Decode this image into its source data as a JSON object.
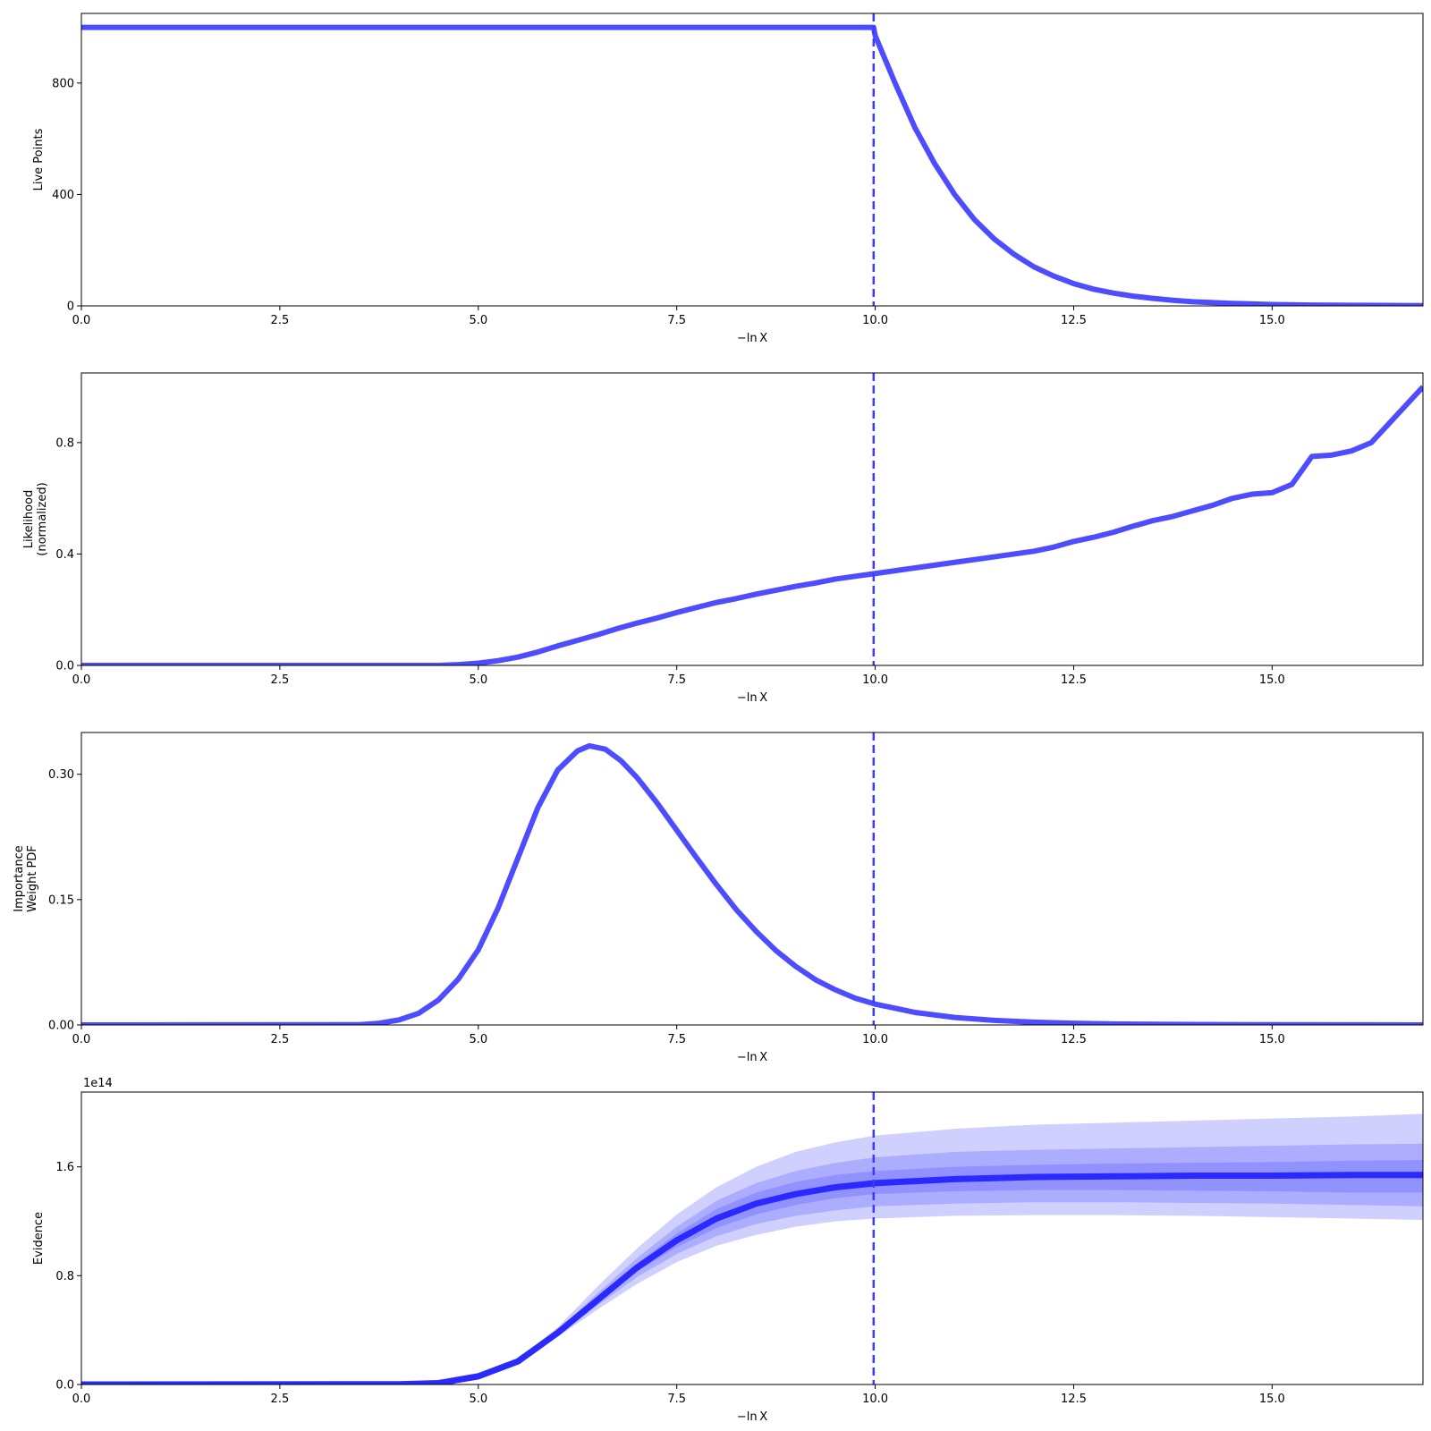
{
  "colors": {
    "line": "#4d4dff",
    "evidence_line": "#2a2aff",
    "vline": "#3b3bff",
    "band": "#4444ff"
  },
  "chart_data": [
    {
      "type": "line",
      "ylabel": [
        "Live Points"
      ],
      "xlabel": "−ln X",
      "xlim": [
        0,
        16.9
      ],
      "ylim": [
        0,
        1050
      ],
      "xticks": [
        "0.0",
        "2.5",
        "5.0",
        "7.5",
        "10.0",
        "12.5",
        "15.0"
      ],
      "xtick_values": [
        0,
        2.5,
        5.0,
        7.5,
        10.0,
        12.5,
        15.0
      ],
      "yticks": [
        "0",
        "400",
        "800"
      ],
      "ytick_values": [
        0,
        400,
        800
      ],
      "vline_x": 9.98,
      "grid": false,
      "series": [
        {
          "x": [
            0,
            9.98,
            10.0,
            10.25,
            10.5,
            10.75,
            11.0,
            11.25,
            11.5,
            11.75,
            12.0,
            12.25,
            12.5,
            12.75,
            13.0,
            13.25,
            13.5,
            13.75,
            14.0,
            14.5,
            15.0,
            15.5,
            16.0,
            16.9
          ],
          "y": [
            1000,
            1000,
            970,
            800,
            640,
            510,
            400,
            310,
            240,
            185,
            140,
            107,
            80,
            60,
            46,
            35,
            27,
            20,
            15,
            9,
            5,
            3,
            2,
            1
          ]
        }
      ]
    },
    {
      "type": "line",
      "ylabel": [
        "Likelihood",
        "(normalized)"
      ],
      "xlabel": "−ln X",
      "xlim": [
        0,
        16.9
      ],
      "ylim": [
        0,
        1.05
      ],
      "xticks": [
        "0.0",
        "2.5",
        "5.0",
        "7.5",
        "10.0",
        "12.5",
        "15.0"
      ],
      "xtick_values": [
        0,
        2.5,
        5.0,
        7.5,
        10.0,
        12.5,
        15.0
      ],
      "yticks": [
        "0.0",
        "0.4",
        "0.8"
      ],
      "ytick_values": [
        0,
        0.4,
        0.8
      ],
      "vline_x": 9.98,
      "grid": false,
      "series": [
        {
          "x": [
            0,
            4.5,
            4.75,
            5.0,
            5.25,
            5.5,
            5.75,
            6.0,
            6.25,
            6.5,
            6.75,
            7.0,
            7.25,
            7.5,
            7.75,
            8.0,
            8.25,
            8.5,
            8.75,
            9.0,
            9.25,
            9.5,
            9.75,
            10.0,
            10.25,
            10.5,
            10.75,
            11.0,
            11.25,
            11.5,
            11.75,
            12.0,
            12.25,
            12.5,
            12.75,
            13.0,
            13.25,
            13.5,
            13.75,
            14.0,
            14.25,
            14.5,
            14.75,
            15.0,
            15.25,
            15.5,
            15.75,
            16.0,
            16.25,
            16.9
          ],
          "y": [
            0.0,
            0.0,
            0.003,
            0.008,
            0.017,
            0.03,
            0.048,
            0.07,
            0.09,
            0.11,
            0.132,
            0.152,
            0.17,
            0.19,
            0.208,
            0.226,
            0.24,
            0.256,
            0.27,
            0.284,
            0.296,
            0.31,
            0.32,
            0.33,
            0.34,
            0.35,
            0.36,
            0.37,
            0.38,
            0.39,
            0.4,
            0.41,
            0.425,
            0.445,
            0.46,
            0.478,
            0.5,
            0.52,
            0.535,
            0.555,
            0.575,
            0.6,
            0.615,
            0.62,
            0.65,
            0.75,
            0.755,
            0.77,
            0.8,
            1.0
          ]
        }
      ]
    },
    {
      "type": "line",
      "ylabel": [
        "Importance",
        "Weight PDF"
      ],
      "xlabel": "−ln X",
      "xlim": [
        0,
        16.9
      ],
      "ylim": [
        0,
        0.35
      ],
      "xticks": [
        "0.0",
        "2.5",
        "5.0",
        "7.5",
        "10.0",
        "12.5",
        "15.0"
      ],
      "xtick_values": [
        0,
        2.5,
        5.0,
        7.5,
        10.0,
        12.5,
        15.0
      ],
      "yticks": [
        "0.00",
        "0.15",
        "0.30"
      ],
      "ytick_values": [
        0,
        0.15,
        0.3
      ],
      "vline_x": 9.98,
      "grid": false,
      "series": [
        {
          "x": [
            0,
            3.5,
            3.75,
            4.0,
            4.25,
            4.5,
            4.75,
            5.0,
            5.25,
            5.5,
            5.75,
            6.0,
            6.25,
            6.4,
            6.6,
            6.8,
            7.0,
            7.25,
            7.5,
            7.75,
            8.0,
            8.25,
            8.5,
            8.75,
            9.0,
            9.25,
            9.5,
            9.75,
            10.0,
            10.5,
            11.0,
            11.5,
            12.0,
            12.5,
            13.0,
            14.0,
            15.0,
            16.9
          ],
          "y": [
            0.0,
            0.0003,
            0.002,
            0.006,
            0.014,
            0.03,
            0.055,
            0.09,
            0.14,
            0.2,
            0.26,
            0.305,
            0.328,
            0.334,
            0.33,
            0.316,
            0.296,
            0.266,
            0.233,
            0.2,
            0.168,
            0.138,
            0.112,
            0.089,
            0.07,
            0.054,
            0.042,
            0.032,
            0.025,
            0.015,
            0.009,
            0.0055,
            0.0033,
            0.002,
            0.0012,
            0.0005,
            0.0002,
            0.0
          ]
        }
      ]
    },
    {
      "type": "area",
      "ylabel": [
        "Evidence"
      ],
      "xlabel": "−ln X",
      "offset_label": "1e14",
      "xlim": [
        0,
        16.9
      ],
      "ylim": [
        0,
        2.15
      ],
      "xticks": [
        "0.0",
        "2.5",
        "5.0",
        "7.5",
        "10.0",
        "12.5",
        "15.0"
      ],
      "xtick_values": [
        0,
        2.5,
        5.0,
        7.5,
        10.0,
        12.5,
        15.0
      ],
      "yticks": [
        "0.0",
        "0.8",
        "1.6"
      ],
      "ytick_values": [
        0,
        0.8,
        1.6
      ],
      "vline_x": 9.98,
      "grid": false,
      "x": [
        0,
        4.0,
        4.5,
        5.0,
        5.5,
        6.0,
        6.5,
        7.0,
        7.5,
        8.0,
        8.5,
        9.0,
        9.5,
        10.0,
        11.0,
        12.0,
        13.0,
        14.0,
        15.0,
        16.0,
        16.9
      ],
      "series": [
        {
          "name": "",
          "values": [
            0.0,
            0.002,
            0.01,
            0.06,
            0.17,
            0.38,
            0.62,
            0.86,
            1.06,
            1.22,
            1.33,
            1.4,
            1.45,
            1.48,
            1.51,
            1.525,
            1.53,
            1.535,
            1.535,
            1.54,
            1.54
          ]
        }
      ],
      "bands": [
        {
          "lower": [
            0.0,
            0.002,
            0.01,
            0.058,
            0.16,
            0.35,
            0.55,
            0.74,
            0.9,
            1.02,
            1.1,
            1.16,
            1.2,
            1.22,
            1.24,
            1.245,
            1.245,
            1.24,
            1.23,
            1.22,
            1.21
          ],
          "upper": [
            0.0,
            0.002,
            0.01,
            0.062,
            0.18,
            0.42,
            0.72,
            1.0,
            1.25,
            1.45,
            1.6,
            1.71,
            1.78,
            1.83,
            1.88,
            1.91,
            1.925,
            1.94,
            1.955,
            1.97,
            1.99
          ]
        },
        {
          "lower": [
            0.0,
            0.002,
            0.01,
            0.059,
            0.165,
            0.36,
            0.58,
            0.79,
            0.96,
            1.09,
            1.18,
            1.24,
            1.28,
            1.31,
            1.33,
            1.34,
            1.34,
            1.335,
            1.33,
            1.32,
            1.31
          ],
          "upper": [
            0.0,
            0.002,
            0.01,
            0.061,
            0.175,
            0.4,
            0.67,
            0.93,
            1.16,
            1.35,
            1.48,
            1.57,
            1.63,
            1.67,
            1.71,
            1.725,
            1.735,
            1.745,
            1.755,
            1.765,
            1.77
          ]
        },
        {
          "lower": [
            0.0,
            0.002,
            0.01,
            0.06,
            0.168,
            0.37,
            0.6,
            0.83,
            1.01,
            1.15,
            1.25,
            1.32,
            1.37,
            1.4,
            1.42,
            1.43,
            1.43,
            1.425,
            1.42,
            1.41,
            1.41
          ],
          "upper": [
            0.0,
            0.002,
            0.01,
            0.06,
            0.172,
            0.39,
            0.64,
            0.89,
            1.11,
            1.29,
            1.41,
            1.49,
            1.54,
            1.57,
            1.6,
            1.615,
            1.625,
            1.63,
            1.635,
            1.645,
            1.65
          ]
        }
      ]
    }
  ]
}
